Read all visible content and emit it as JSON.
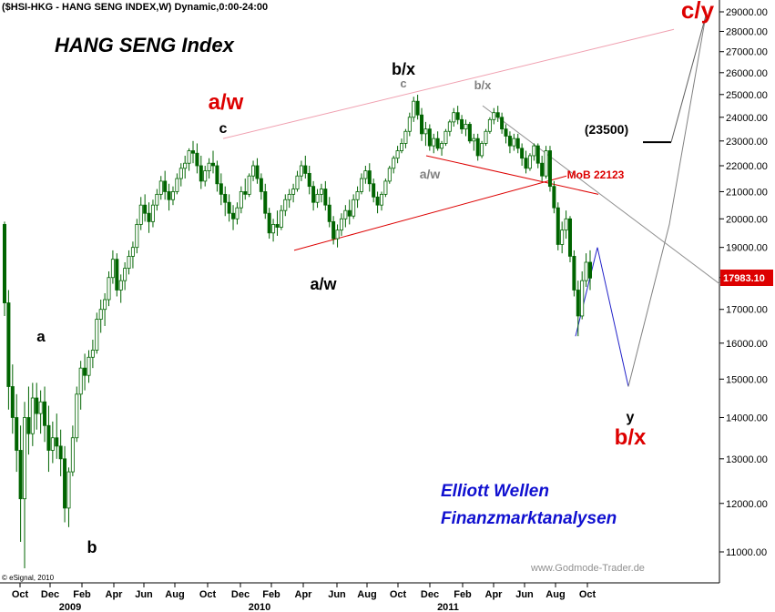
{
  "header": {
    "symbol_line": "($HSI-HKG - HANG SENG INDEX,W) Dynamic,0:00-24:00",
    "title": "HANG SENG Index",
    "copyright": "© eSignal, 2010",
    "watermark": "www.Godmode-Trader.de",
    "brand_line1": "Elliott Wellen",
    "brand_line2": "Finanzmarktanalysen"
  },
  "colors": {
    "candle": "#006400",
    "wave_red": "#dd0000",
    "wave_blue": "#2020c8",
    "wave_gray": "#808080",
    "wave_magenta": "#e040e0",
    "trend_pink": "#f0a0b0",
    "brand": "#1010d0",
    "price_box": "#dd0000"
  },
  "chart_data": {
    "type": "candlestick",
    "timeframe": "weekly",
    "y_axis": {
      "position": "right",
      "scale": "log",
      "ylim": [
        10500,
        29500
      ],
      "ticks": [
        "11000.00",
        "12000.00",
        "13000.00",
        "14000.00",
        "15000.00",
        "16000.00",
        "17000.00",
        "18000.00",
        "19000.00",
        "20000.00",
        "21000.00",
        "22000.00",
        "23000.00",
        "24000.00",
        "25000.00",
        "26000.00",
        "27000.00",
        "28000.00",
        "29000.00"
      ]
    },
    "x_axis": {
      "months": [
        "Oct",
        "Dec",
        "Feb",
        "Apr",
        "Jun",
        "Aug",
        "Oct",
        "Dec",
        "Feb",
        "Apr",
        "Jun",
        "Aug",
        "Oct",
        "Dec",
        "Feb",
        "Apr",
        "Jun",
        "Aug",
        "Oct"
      ],
      "years": [
        "2009",
        "2010",
        "2011"
      ]
    },
    "current_price": "17983.10",
    "grid": false,
    "series": [
      {
        "values": [
          [
            19800,
            19900,
            16800,
            17200
          ],
          [
            17200,
            17600,
            14200,
            14800
          ],
          [
            14800,
            15400,
            13600,
            14000
          ],
          [
            14000,
            14600,
            12700,
            13200
          ],
          [
            13200,
            13800,
            11200,
            12100
          ],
          [
            12100,
            14400,
            10680,
            14000
          ],
          [
            14000,
            14800,
            13100,
            13600
          ],
          [
            13600,
            14900,
            13300,
            14500
          ],
          [
            14500,
            14900,
            13700,
            14100
          ],
          [
            14100,
            14700,
            13600,
            14400
          ],
          [
            14400,
            14800,
            13400,
            13800
          ],
          [
            13800,
            14300,
            12700,
            13200
          ],
          [
            13200,
            13900,
            12900,
            13500
          ],
          [
            13500,
            14100,
            13000,
            13300
          ],
          [
            13300,
            13700,
            12600,
            13000
          ],
          [
            13000,
            13300,
            11600,
            11900
          ],
          [
            11900,
            12800,
            11500,
            12700
          ],
          [
            12700,
            13800,
            12600,
            13500
          ],
          [
            13500,
            14800,
            13400,
            14600
          ],
          [
            14600,
            15500,
            14200,
            15300
          ],
          [
            15300,
            15700,
            14700,
            15100
          ],
          [
            15100,
            15800,
            14900,
            15600
          ],
          [
            15600,
            16100,
            15300,
            15800
          ],
          [
            15800,
            16900,
            15700,
            16700
          ],
          [
            16700,
            17300,
            16300,
            17000
          ],
          [
            17000,
            17500,
            16500,
            17300
          ],
          [
            17300,
            18200,
            17100,
            18000
          ],
          [
            18000,
            18900,
            17800,
            18600
          ],
          [
            18600,
            18800,
            17400,
            17600
          ],
          [
            17600,
            18100,
            17200,
            17900
          ],
          [
            17900,
            18500,
            17600,
            18300
          ],
          [
            18300,
            18900,
            18100,
            18700
          ],
          [
            18700,
            19200,
            18300,
            19000
          ],
          [
            19000,
            20000,
            18800,
            19800
          ],
          [
            19800,
            20800,
            19600,
            20500
          ],
          [
            20500,
            20900,
            19900,
            20200
          ],
          [
            20200,
            20600,
            19500,
            19900
          ],
          [
            19900,
            20700,
            19700,
            20500
          ],
          [
            20500,
            21100,
            20300,
            20900
          ],
          [
            20900,
            21600,
            20700,
            21400
          ],
          [
            21400,
            21800,
            20700,
            21000
          ],
          [
            21000,
            21300,
            20300,
            20700
          ],
          [
            20700,
            21200,
            20500,
            21000
          ],
          [
            21000,
            21700,
            20900,
            21500
          ],
          [
            21500,
            22100,
            21200,
            21900
          ],
          [
            21900,
            22400,
            21500,
            22100
          ],
          [
            22100,
            22700,
            21800,
            22600
          ],
          [
            22600,
            23000,
            22100,
            22500
          ],
          [
            22500,
            22900,
            21700,
            22000
          ],
          [
            22000,
            22400,
            21100,
            21400
          ],
          [
            21400,
            22000,
            21200,
            21800
          ],
          [
            21800,
            22300,
            21500,
            22100
          ],
          [
            22100,
            22600,
            21700,
            22000
          ],
          [
            22000,
            22200,
            21000,
            21300
          ],
          [
            21300,
            21700,
            20500,
            20900
          ],
          [
            20900,
            21200,
            20100,
            20600
          ],
          [
            20600,
            20900,
            19900,
            20200
          ],
          [
            20200,
            20500,
            19600,
            20000
          ],
          [
            20000,
            20600,
            19800,
            20400
          ],
          [
            20400,
            21200,
            20200,
            21000
          ],
          [
            21000,
            21500,
            20700,
            20900
          ],
          [
            20900,
            21700,
            20800,
            21600
          ],
          [
            21600,
            22200,
            21400,
            22000
          ],
          [
            22000,
            22300,
            21300,
            21500
          ],
          [
            21500,
            21700,
            20700,
            21000
          ],
          [
            21000,
            21300,
            20000,
            20200
          ],
          [
            20200,
            20400,
            19300,
            19500
          ],
          [
            19500,
            20000,
            19200,
            19800
          ],
          [
            19800,
            20300,
            19400,
            19700
          ],
          [
            19700,
            20500,
            19600,
            20300
          ],
          [
            20300,
            20900,
            20100,
            20700
          ],
          [
            20700,
            21100,
            20400,
            20900
          ],
          [
            20900,
            21300,
            20600,
            21100
          ],
          [
            21100,
            21800,
            21000,
            21600
          ],
          [
            21600,
            22200,
            21400,
            22000
          ],
          [
            22000,
            22400,
            21500,
            21700
          ],
          [
            21700,
            22000,
            20900,
            21200
          ],
          [
            21200,
            21400,
            20300,
            20600
          ],
          [
            20600,
            21100,
            20400,
            20900
          ],
          [
            20900,
            21300,
            20600,
            21100
          ],
          [
            21100,
            21400,
            20300,
            20500
          ],
          [
            20500,
            20800,
            19700,
            19900
          ],
          [
            19900,
            20100,
            19100,
            19300
          ],
          [
            19300,
            19800,
            19000,
            19600
          ],
          [
            19600,
            20200,
            19400,
            20000
          ],
          [
            20000,
            20500,
            19700,
            20300
          ],
          [
            20300,
            20700,
            19800,
            20100
          ],
          [
            20100,
            20900,
            20000,
            20700
          ],
          [
            20700,
            21200,
            20400,
            21000
          ],
          [
            21000,
            21700,
            20900,
            21500
          ],
          [
            21500,
            22000,
            21300,
            21800
          ],
          [
            21800,
            22100,
            21000,
            21300
          ],
          [
            21300,
            21500,
            20600,
            20800
          ],
          [
            20800,
            21000,
            20200,
            20500
          ],
          [
            20500,
            21000,
            20300,
            20900
          ],
          [
            20900,
            21500,
            20800,
            21400
          ],
          [
            21400,
            22000,
            21300,
            21900
          ],
          [
            21900,
            22400,
            21700,
            22300
          ],
          [
            22300,
            22800,
            22100,
            22600
          ],
          [
            22600,
            23100,
            22500,
            22900
          ],
          [
            22900,
            23500,
            22700,
            23400
          ],
          [
            23400,
            24200,
            23200,
            24000
          ],
          [
            24000,
            24900,
            23800,
            24700
          ],
          [
            24700,
            24990,
            23900,
            24100
          ],
          [
            24100,
            24400,
            23000,
            23300
          ],
          [
            23300,
            23800,
            22800,
            23500
          ],
          [
            23500,
            23700,
            22600,
            22800
          ],
          [
            22800,
            23300,
            22500,
            23100
          ],
          [
            23100,
            23400,
            22600,
            22700
          ],
          [
            22700,
            23000,
            22400,
            22900
          ],
          [
            22900,
            23500,
            22800,
            23400
          ],
          [
            23400,
            23900,
            23200,
            23800
          ],
          [
            23800,
            24400,
            23600,
            24200
          ],
          [
            24200,
            24500,
            23700,
            23900
          ],
          [
            23900,
            24100,
            23300,
            23500
          ],
          [
            23500,
            23900,
            23200,
            23700
          ],
          [
            23700,
            23800,
            22900,
            23000
          ],
          [
            23000,
            23300,
            22600,
            23100
          ],
          [
            23100,
            23300,
            22200,
            22400
          ],
          [
            22400,
            23000,
            22300,
            22900
          ],
          [
            22900,
            23500,
            22800,
            23400
          ],
          [
            23400,
            24000,
            23300,
            23900
          ],
          [
            23900,
            24400,
            23700,
            24200
          ],
          [
            24200,
            24500,
            23800,
            24000
          ],
          [
            24000,
            24200,
            23300,
            23500
          ],
          [
            23500,
            23700,
            22900,
            23200
          ],
          [
            23200,
            23400,
            22500,
            22800
          ],
          [
            22800,
            23300,
            22600,
            23100
          ],
          [
            23100,
            23300,
            22500,
            22700
          ],
          [
            22700,
            22900,
            22000,
            22300
          ],
          [
            22300,
            22600,
            21700,
            21900
          ],
          [
            21900,
            22500,
            21800,
            22400
          ],
          [
            22400,
            22900,
            22200,
            22800
          ],
          [
            22800,
            22900,
            21900,
            22100
          ],
          [
            22100,
            22400,
            21400,
            21600
          ],
          [
            21600,
            22800,
            21500,
            22600
          ],
          [
            22600,
            22800,
            21000,
            21200
          ],
          [
            21200,
            21400,
            20200,
            20400
          ],
          [
            20400,
            20600,
            18900,
            19100
          ],
          [
            19100,
            19900,
            18800,
            19600
          ],
          [
            19600,
            20300,
            19300,
            20000
          ],
          [
            20000,
            20100,
            18500,
            18700
          ],
          [
            18700,
            18900,
            17400,
            17600
          ],
          [
            17600,
            17900,
            16200,
            16800
          ],
          [
            16800,
            18200,
            16700,
            17900
          ],
          [
            17900,
            18800,
            17700,
            18500
          ],
          [
            18500,
            18900,
            17600,
            17983
          ]
        ]
      }
    ],
    "wave_labels": [
      {
        "text": "a/w",
        "color": "red"
      },
      {
        "text": "c",
        "color": "black"
      },
      {
        "text": "b/x",
        "color": "black"
      },
      {
        "text": "c",
        "color": "gray"
      },
      {
        "text": "b/x",
        "color": "gray"
      },
      {
        "text": "a/w",
        "color": "black"
      },
      {
        "text": "a/w",
        "color": "gray"
      },
      {
        "text": "c/y",
        "color": "red"
      },
      {
        "text": "b/x",
        "color": "red"
      },
      {
        "text": "a",
        "color": "black"
      },
      {
        "text": "b",
        "color": "black"
      },
      {
        "text": "y",
        "color": "black"
      },
      {
        "text": "(23500)",
        "color": "black"
      },
      {
        "text": "MoB 22123",
        "color": "red"
      }
    ],
    "projection_path": [
      24000,
      26000,
      27800,
      28000,
      29000
    ],
    "forecast_path": [
      17983,
      16200,
      19000,
      14800,
      19800,
      29000
    ]
  }
}
